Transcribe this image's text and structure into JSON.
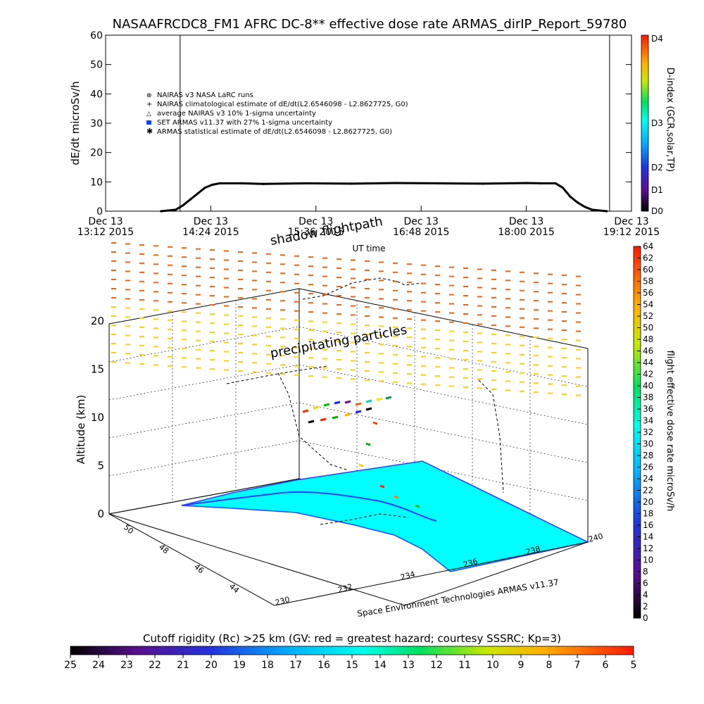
{
  "chart_data": [
    {
      "type": "line",
      "title": "NASAAFRCDC8_FM1 AFRC DC-8** effective dose rate ARMAS_dirIP_Report_59780",
      "ylabel": "dE/dt microSv/h",
      "xlabel": "UT time",
      "ylim": [
        0,
        60
      ],
      "yticks": [
        "0",
        "10",
        "20",
        "30",
        "40",
        "50",
        "60"
      ],
      "xticks": [
        {
          "date": "Dec 13",
          "time": "13:12 2015"
        },
        {
          "date": "Dec 13",
          "time": "14:24 2015"
        },
        {
          "date": "Dec 13",
          "time": "15:36 2015"
        },
        {
          "date": "Dec 13",
          "time": "16:48 2015"
        },
        {
          "date": "Dec 13",
          "time": "18:00 2015"
        },
        {
          "date": "Dec 13",
          "time": "19:12 2015"
        }
      ],
      "legend": [
        "NAIRAS v3 NASA LaRC runs",
        "NAIRAS climatological estimate of dE/dt(L2.6546098 - L2.8627725, G0)",
        "average NAIRAS v3 10% 1-sigma uncertainty",
        "SET ARMAS v11.37 with 27% 1-sigma uncertainty",
        "ARMAS statistical estimate of dE/dt(L2.6546098 - L2.8627725, G0)"
      ],
      "series": [
        {
          "name": "ARMAS statistical estimate of dE/dt(L2.6546098 - L2.8627725, G0)",
          "x": [
            "13:50",
            "14:00",
            "14:05",
            "14:10",
            "14:15",
            "14:20",
            "14:25",
            "14:30",
            "14:45",
            "15:00",
            "15:30",
            "16:00",
            "16:30",
            "17:00",
            "17:30",
            "18:00",
            "18:10",
            "18:20",
            "18:25",
            "18:30",
            "18:35",
            "18:40",
            "18:45",
            "18:55"
          ],
          "y": [
            0,
            0.5,
            2,
            4,
            6,
            8,
            9,
            9.5,
            9.5,
            9.3,
            9.5,
            9.4,
            9.6,
            9.5,
            9.4,
            9.6,
            9.5,
            9.5,
            8,
            5,
            3,
            1.5,
            0.5,
            0
          ]
        }
      ],
      "vertical_lines": [
        "14:03",
        "18:57"
      ],
      "colorbar": {
        "label": "D-index (GCR,solar,TP)",
        "ticks": [
          "D0",
          "D1",
          "D2",
          "D3",
          "D4"
        ]
      }
    },
    {
      "type": "scatter",
      "ylabel": "Altitude (km)",
      "zticks": [
        "0",
        "5",
        "10",
        "15",
        "20"
      ],
      "xticks": [
        "230",
        "232",
        "234",
        "236",
        "238",
        "240"
      ],
      "yticks": [
        "44",
        "46",
        "48",
        "50"
      ],
      "annotations": [
        "shadow flightpath",
        "precipitating particles"
      ],
      "credit": "Space Environment Technologies ARMAS v11.37",
      "colorbar": {
        "label": "flight effective dose rate microSv/h",
        "ticks": [
          "0",
          "2",
          "4",
          "6",
          "8",
          "10",
          "12",
          "14",
          "16",
          "18",
          "20",
          "22",
          "24",
          "26",
          "28",
          "30",
          "32",
          "34",
          "36",
          "38",
          "40",
          "42",
          "44",
          "46",
          "48",
          "50",
          "52",
          "54",
          "56",
          "58",
          "60",
          "62",
          "64"
        ]
      }
    },
    {
      "type": "heatmap",
      "title": "Cutoff rigidity (Rc) >25 km (GV: red = greatest hazard; courtesy SSSRC; Kp=3)",
      "ticks": [
        "25",
        "24",
        "23",
        "22",
        "21",
        "20",
        "19",
        "18",
        "17",
        "16",
        "15",
        "14",
        "13",
        "12",
        "11",
        "10",
        "9",
        "8",
        "7",
        "6",
        "5"
      ]
    }
  ]
}
